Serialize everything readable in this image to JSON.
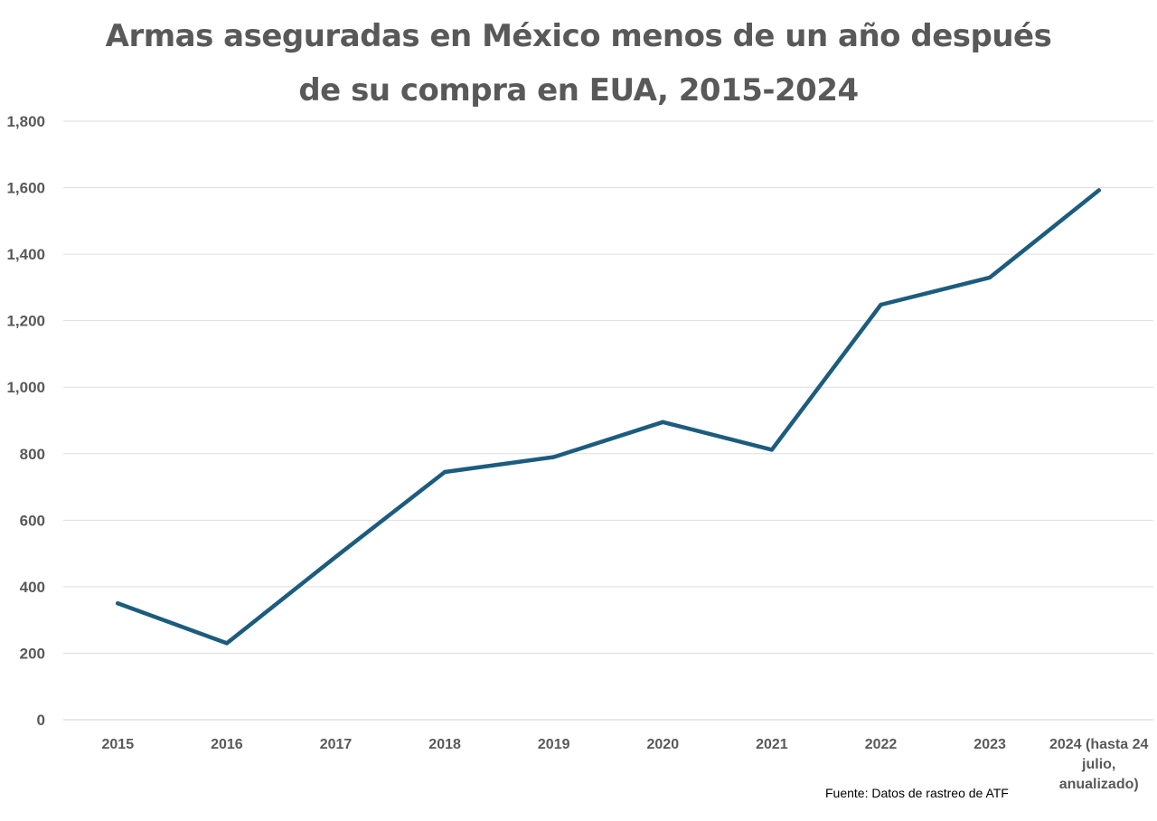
{
  "chart_data": {
    "type": "line",
    "title_lines": [
      "Armas aseguradas en México menos de un año después",
      "de su compra en EUA, 2015-2024"
    ],
    "categories": [
      "2015",
      "2016",
      "2017",
      "2018",
      "2019",
      "2020",
      "2021",
      "2022",
      "2023",
      "2024 (hasta 24 julio, anualizado)"
    ],
    "category_label_lines": [
      [
        "2015"
      ],
      [
        "2016"
      ],
      [
        "2017"
      ],
      [
        "2018"
      ],
      [
        "2019"
      ],
      [
        "2020"
      ],
      [
        "2021"
      ],
      [
        "2022"
      ],
      [
        "2023"
      ],
      [
        "2024 (hasta 24",
        "julio,",
        "anualizado)"
      ]
    ],
    "series": [
      {
        "values": [
          350,
          230,
          490,
          745,
          790,
          895,
          812,
          1248,
          1330,
          1592
        ],
        "color": "#1c5c7e"
      }
    ],
    "ylim": [
      0,
      1800
    ],
    "yticks": [
      0,
      200,
      400,
      600,
      800,
      1000,
      1200,
      1400,
      1600,
      1800
    ],
    "ytick_labels": [
      "0",
      "200",
      "400",
      "600",
      "800",
      "1,000",
      "1,200",
      "1,400",
      "1,600",
      "1,800"
    ],
    "grid": true,
    "legend": "none",
    "xlabel": "",
    "ylabel": ""
  },
  "source_note": "Fuente: Datos de rastreo de ATF"
}
